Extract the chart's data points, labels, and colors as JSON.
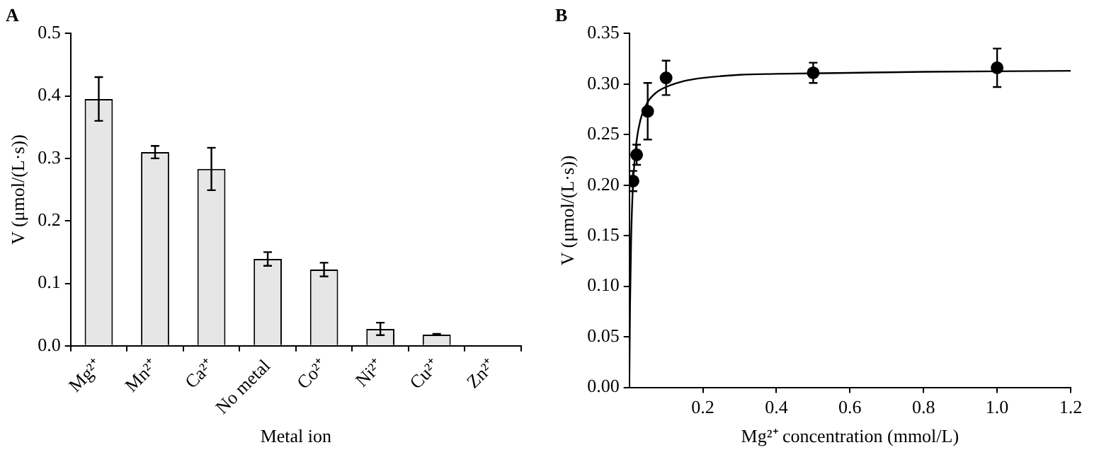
{
  "chart_data": [
    {
      "type": "bar",
      "title": "A",
      "xlabel": "Metal ion",
      "ylabel": "V (μmol/(L·s))",
      "categories": [
        "Mg²⁺",
        "Mn²⁺",
        "Ca²⁺",
        "No metal",
        "Co²⁺",
        "Ni²⁺",
        "Cu²⁺",
        "Zn²⁺"
      ],
      "values": [
        0.395,
        0.31,
        0.283,
        0.139,
        0.122,
        0.027,
        0.018,
        null
      ],
      "errors": [
        0.035,
        0.01,
        0.034,
        0.011,
        0.011,
        0.01,
        0.001,
        null
      ],
      "color": "#e6e6e6",
      "ylim": [
        0,
        0.5
      ],
      "yticks": [
        {
          "value": 0,
          "label": "0.0"
        },
        {
          "value": 0.1,
          "label": "0.1"
        },
        {
          "value": 0.2,
          "label": "0.2"
        },
        {
          "value": 0.3,
          "label": "0.3"
        },
        {
          "value": 0.4,
          "label": "0.4"
        },
        {
          "value": 0.5,
          "label": "0.5"
        }
      ],
      "grid": false
    },
    {
      "type": "scatter",
      "title": "B",
      "xlabel": "Mg²⁺ concentration (mmol/L)",
      "ylabel": "V (μmol/(L·s))",
      "series": [
        {
          "type": "scatter",
          "color": "#000000",
          "marker": "circle",
          "x": [
            0.01,
            0.02,
            0.05,
            0.1,
            0.5,
            1.0
          ],
          "values": [
            0.204,
            0.23,
            0.273,
            0.306,
            0.311,
            0.316
          ],
          "errors": [
            0.01,
            0.01,
            0.028,
            0.017,
            0.01,
            0.019
          ]
        },
        {
          "type": "line",
          "color": "#000000",
          "marker": "none",
          "x": [
            0,
            0.002,
            0.005,
            0.01,
            0.02,
            0.03,
            0.05,
            0.075,
            0.1,
            0.15,
            0.2,
            0.3,
            0.4,
            0.6,
            0.8,
            1.2
          ],
          "values": [
            0,
            0.08,
            0.147,
            0.2,
            0.244,
            0.264,
            0.282,
            0.292,
            0.297,
            0.303,
            0.306,
            0.309,
            0.31,
            0.311,
            0.312,
            0.313
          ]
        }
      ],
      "xlim": [
        0,
        1.2
      ],
      "xticks": [
        0.2,
        0.4,
        0.6,
        0.8,
        {
          "value": 1,
          "label": "1.0"
        },
        1.2
      ],
      "ylim": [
        0,
        0.35
      ],
      "yticks": [
        {
          "value": 0,
          "label": "0.00"
        },
        {
          "value": 0.05,
          "label": "0.05"
        },
        {
          "value": 0.1,
          "label": "0.10"
        },
        {
          "value": 0.15,
          "label": "0.15"
        },
        {
          "value": 0.2,
          "label": "0.20"
        },
        {
          "value": 0.25,
          "label": "0.25"
        },
        {
          "value": 0.3,
          "label": "0.30"
        },
        {
          "value": 0.35,
          "label": "0.35"
        }
      ],
      "grid": false
    }
  ]
}
